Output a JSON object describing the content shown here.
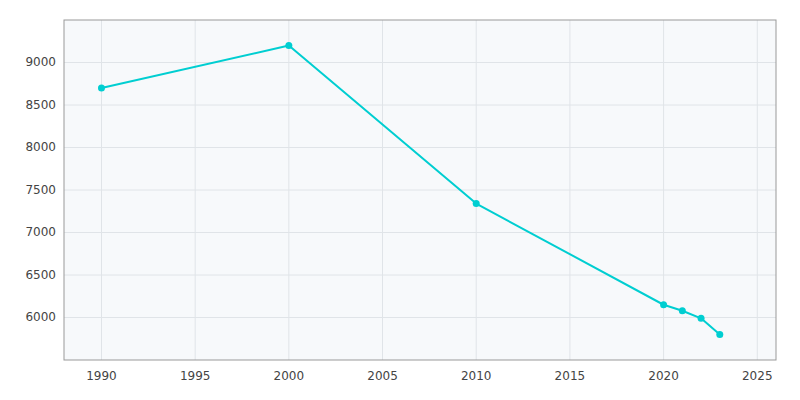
{
  "chart_data": {
    "type": "line",
    "x": [
      1990,
      2000,
      2010,
      2020,
      2021,
      2022,
      2023
    ],
    "values": [
      8700,
      9200,
      7340,
      6150,
      6080,
      5990,
      5800
    ],
    "color": "#00CED1",
    "marker": "circle",
    "xlim": [
      1988,
      2026
    ],
    "ylim": [
      5500,
      9500
    ],
    "xticks": [
      1990,
      1995,
      2000,
      2005,
      2010,
      2015,
      2020,
      2025
    ],
    "yticks": [
      6000,
      6500,
      7000,
      7500,
      8000,
      8500,
      9000
    ],
    "grid": true
  }
}
